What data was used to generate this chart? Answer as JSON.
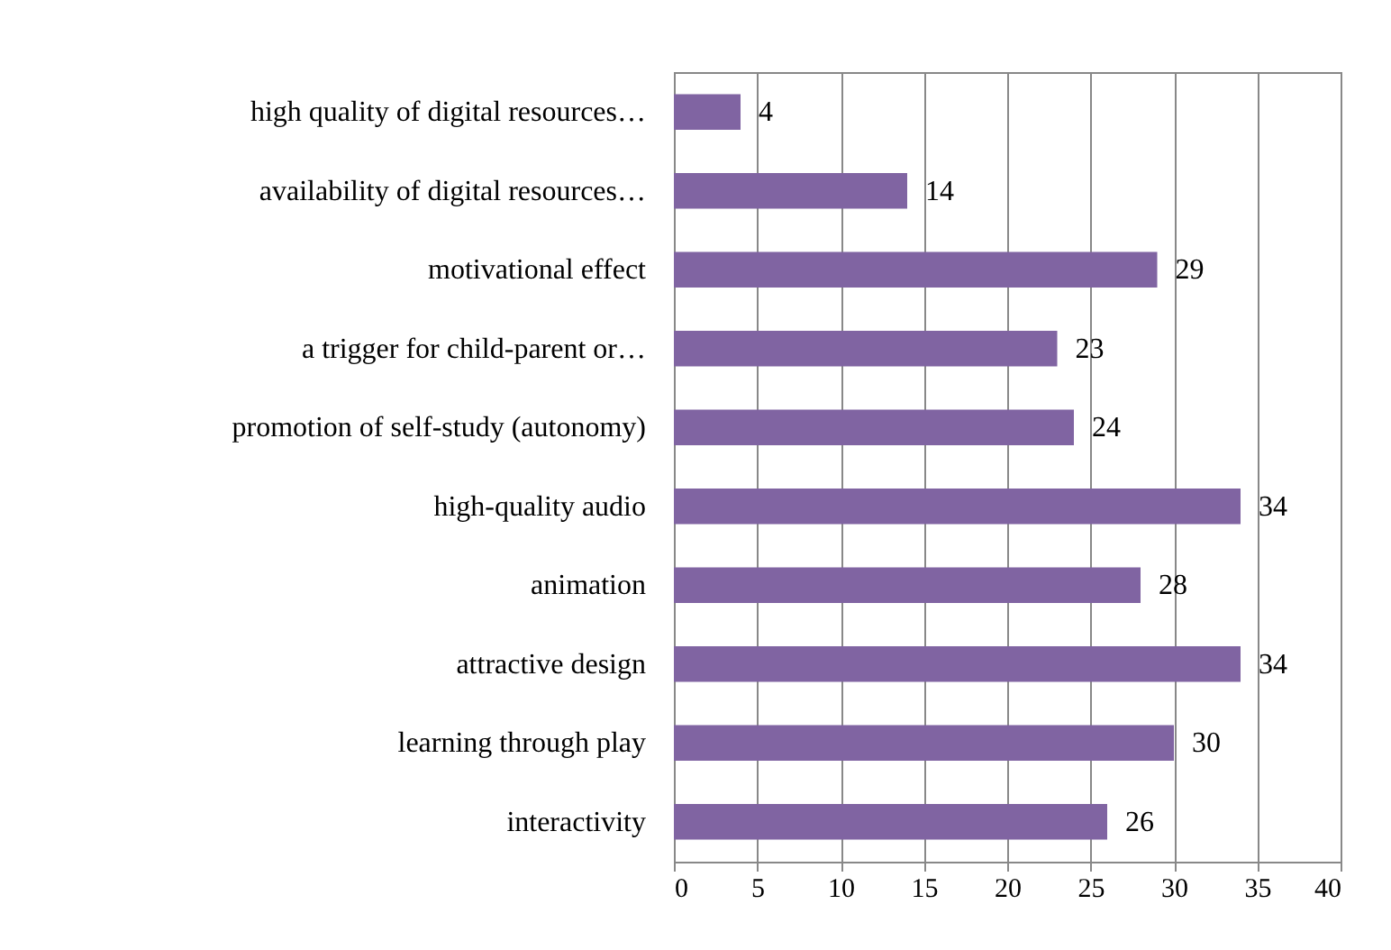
{
  "chart_data": {
    "type": "bar",
    "orientation": "horizontal",
    "categories": [
      "high quality of digital resources…",
      "availability of digital resources…",
      "motivational effect",
      "a trigger for child-parent or…",
      "promotion of self-study (autonomy)",
      "high-quality audio",
      "animation",
      "attractive design",
      "learning through play",
      "interactivity"
    ],
    "values": [
      4,
      14,
      29,
      23,
      24,
      34,
      28,
      34,
      30,
      26
    ],
    "color": "#8064a2",
    "xlim": [
      0,
      40
    ],
    "xticks": [
      0,
      5,
      10,
      15,
      20,
      25,
      30,
      35,
      40
    ],
    "grid": "x",
    "data_labels": true
  }
}
